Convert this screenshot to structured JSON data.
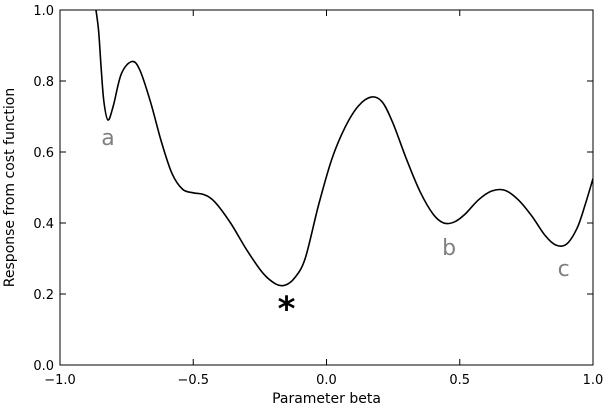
{
  "chart_data": {
    "type": "line",
    "title": "",
    "xlabel": "Parameter beta",
    "ylabel": "Response from cost function",
    "xlim": [
      -1.0,
      1.0
    ],
    "ylim": [
      0.0,
      1.0
    ],
    "x_ticks": [
      "−1.0",
      "−0.5",
      "0.0",
      "0.5",
      "1.0"
    ],
    "x_tick_values": [
      -1.0,
      -0.5,
      0.0,
      0.5,
      1.0
    ],
    "y_ticks": [
      "0.0",
      "0.2",
      "0.4",
      "0.6",
      "0.8",
      "1.0"
    ],
    "y_tick_values": [
      0.0,
      0.2,
      0.4,
      0.6,
      0.8,
      1.0
    ],
    "grid": false,
    "series": [
      {
        "color": "#000000",
        "points": [
          [
            -0.865,
            1.0
          ],
          [
            -0.855,
            0.94
          ],
          [
            -0.845,
            0.83
          ],
          [
            -0.835,
            0.74
          ],
          [
            -0.82,
            0.69
          ],
          [
            -0.8,
            0.73
          ],
          [
            -0.77,
            0.82
          ],
          [
            -0.73,
            0.855
          ],
          [
            -0.7,
            0.83
          ],
          [
            -0.66,
            0.74
          ],
          [
            -0.62,
            0.63
          ],
          [
            -0.58,
            0.54
          ],
          [
            -0.54,
            0.495
          ],
          [
            -0.5,
            0.485
          ],
          [
            -0.46,
            0.48
          ],
          [
            -0.42,
            0.46
          ],
          [
            -0.36,
            0.4
          ],
          [
            -0.3,
            0.325
          ],
          [
            -0.24,
            0.26
          ],
          [
            -0.19,
            0.228
          ],
          [
            -0.155,
            0.225
          ],
          [
            -0.12,
            0.245
          ],
          [
            -0.08,
            0.3
          ],
          [
            -0.03,
            0.45
          ],
          [
            0.02,
            0.58
          ],
          [
            0.07,
            0.67
          ],
          [
            0.12,
            0.73
          ],
          [
            0.17,
            0.755
          ],
          [
            0.21,
            0.74
          ],
          [
            0.25,
            0.68
          ],
          [
            0.3,
            0.58
          ],
          [
            0.35,
            0.49
          ],
          [
            0.4,
            0.425
          ],
          [
            0.44,
            0.4
          ],
          [
            0.48,
            0.403
          ],
          [
            0.52,
            0.425
          ],
          [
            0.57,
            0.465
          ],
          [
            0.62,
            0.49
          ],
          [
            0.67,
            0.492
          ],
          [
            0.72,
            0.465
          ],
          [
            0.77,
            0.42
          ],
          [
            0.82,
            0.365
          ],
          [
            0.86,
            0.338
          ],
          [
            0.9,
            0.34
          ],
          [
            0.94,
            0.385
          ],
          [
            0.97,
            0.45
          ],
          [
            1.0,
            0.525
          ]
        ]
      }
    ],
    "annotations": [
      {
        "text": "a",
        "x": -0.82,
        "y": 0.64,
        "color": "#808080"
      },
      {
        "text": "*",
        "x": -0.15,
        "y": 0.17,
        "color": "#000000"
      },
      {
        "text": "b",
        "x": 0.46,
        "y": 0.33,
        "color": "#808080"
      },
      {
        "text": "c",
        "x": 0.89,
        "y": 0.27,
        "color": "#808080"
      }
    ]
  }
}
